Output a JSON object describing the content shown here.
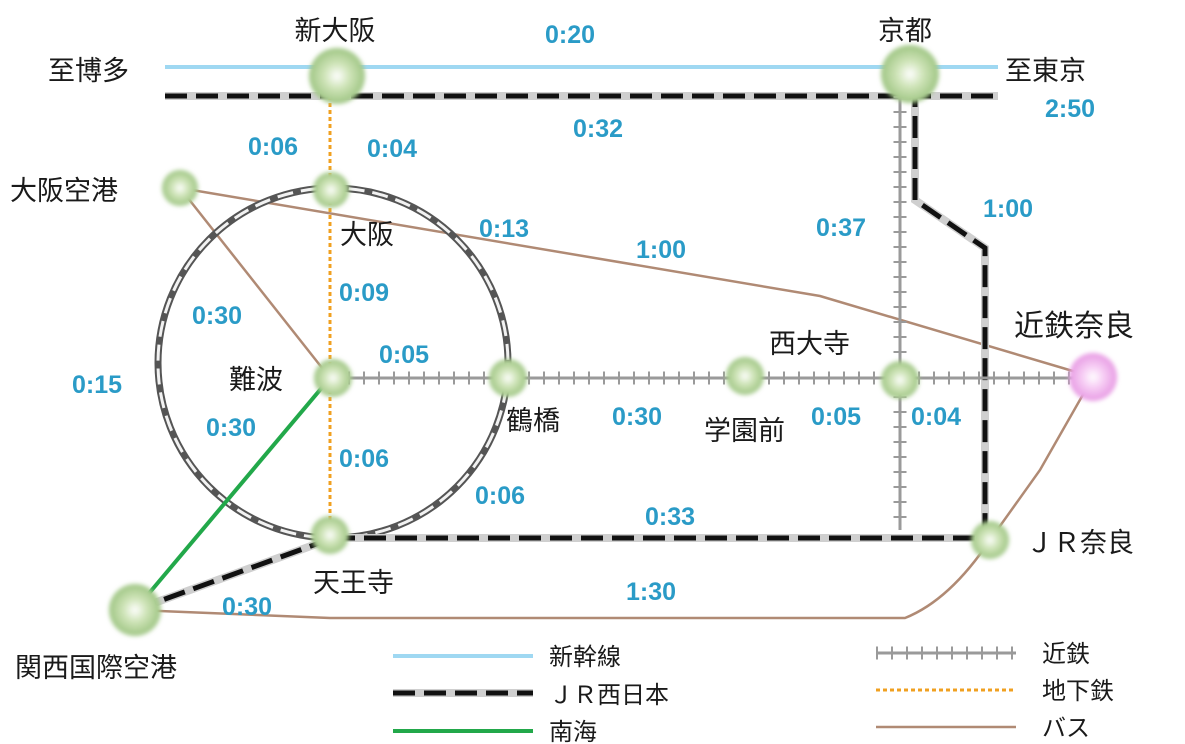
{
  "colors": {
    "shinkansen": "#9fd8f2",
    "jr": "#111111",
    "kintetsu": "#9a9a9a",
    "subway": "#f0a020",
    "nankai": "#22a84a",
    "bus": "#b08a74",
    "node": "#b5d69a",
    "node_kintetsu_nara": "#f6b8f2",
    "time_text": "#2a9bc7"
  },
  "stations": {
    "shin_osaka": "新大阪",
    "kyoto": "京都",
    "to_hakata": "至博多",
    "to_tokyo": "至東京",
    "osaka_airport": "大阪空港",
    "osaka": "大阪",
    "namba": "難波",
    "tsuruhashi": "鶴橋",
    "gakuenmae": "学園前",
    "saidaiji": "西大寺",
    "kintetsu_nara": "近鉄奈良",
    "jr_nara": "ＪＲ奈良",
    "tennoji": "天王寺",
    "kansai_airport": "関西国際空港"
  },
  "times": {
    "shin_osaka_kyoto": "0:20",
    "kyoto_tokyo": "2:50",
    "shin_osaka_kyoto_jr": "0:32",
    "shin_osaka_osaka_subway": "0:06",
    "shin_osaka_osaka_jr": "0:04",
    "kyoto_saidaiji": "0:37",
    "kyoto_jr_nara": "1:00",
    "osaka_tsuruhashi": "0:13",
    "osaka_airport_kintetsu_nara": "1:00",
    "osaka_airport_namba": "0:30",
    "osaka_namba": "0:09",
    "kansai_airport_osaka_loop": "0:15",
    "namba_tsuruhashi": "0:05",
    "namba_kansai_airport": "0:30",
    "namba_tennoji": "0:06",
    "tsuruhashi_tennoji": "0:06",
    "tsuruhashi_gakuenmae": "0:30",
    "gakuenmae_saidaiji": "0:05",
    "saidaiji_kintetsu_nara": "0:04",
    "tennoji_jr_nara": "0:33",
    "kansai_airport_tennoji": "0:30",
    "kansai_airport_jr_nara": "1:30"
  },
  "legend": {
    "shinkansen": "新幹線",
    "jr_west": "ＪＲ西日本",
    "nankai": "南海",
    "kintetsu": "近鉄",
    "subway": "地下鉄",
    "bus": "バス"
  }
}
